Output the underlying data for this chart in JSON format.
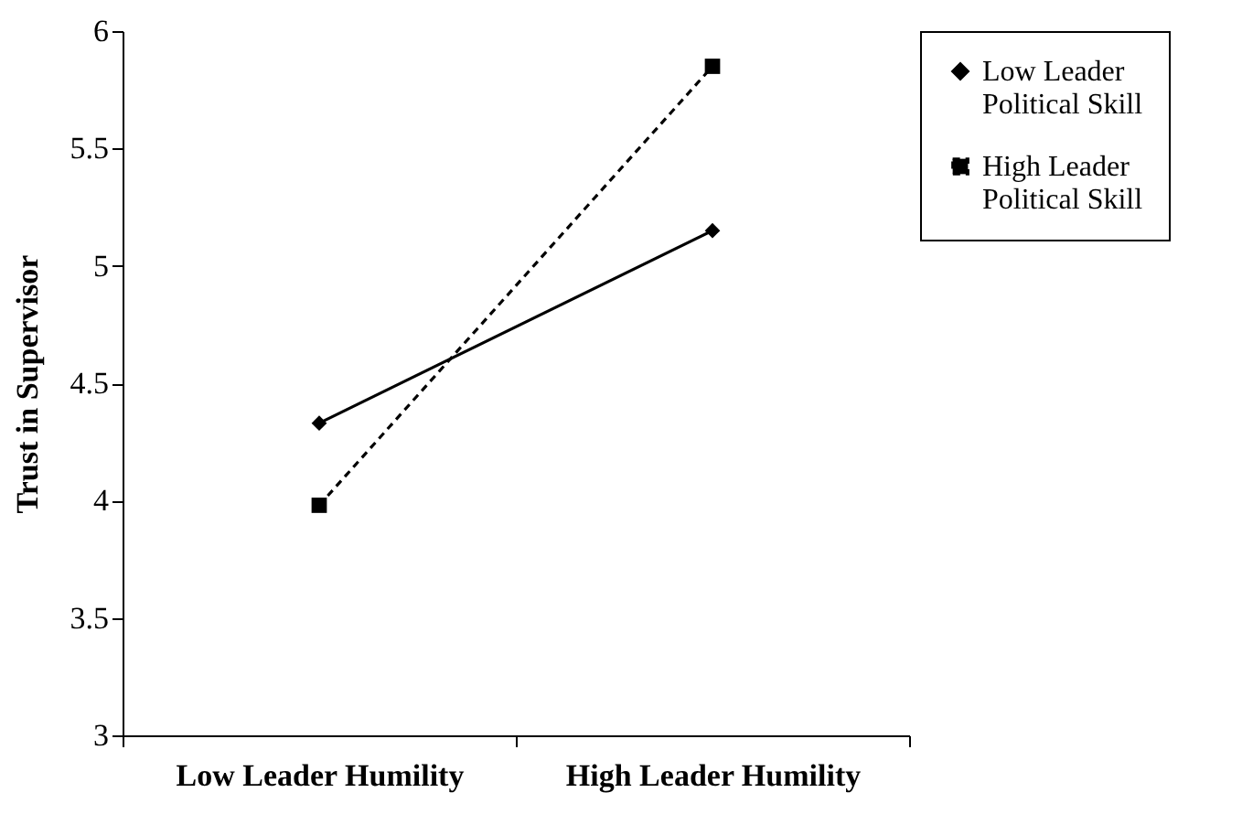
{
  "chart_data": {
    "type": "line",
    "ylabel": "Trust in Supervisor",
    "categories": [
      "Low Leader Humility",
      "High Leader Humility"
    ],
    "series": [
      {
        "name": "Low Leader Political Skill",
        "color": "#000000",
        "marker": "diamond",
        "line_style": "solid",
        "values": [
          4.33,
          5.15
        ]
      },
      {
        "name": "High Leader Political Skill",
        "color": "#000000",
        "marker": "square",
        "line_style": "dashed",
        "values": [
          3.98,
          5.85
        ]
      }
    ],
    "ylim": [
      3,
      6
    ],
    "yticks": [
      3,
      3.5,
      4,
      4.5,
      5,
      5.5,
      6
    ],
    "grid": false,
    "legend": "right"
  }
}
